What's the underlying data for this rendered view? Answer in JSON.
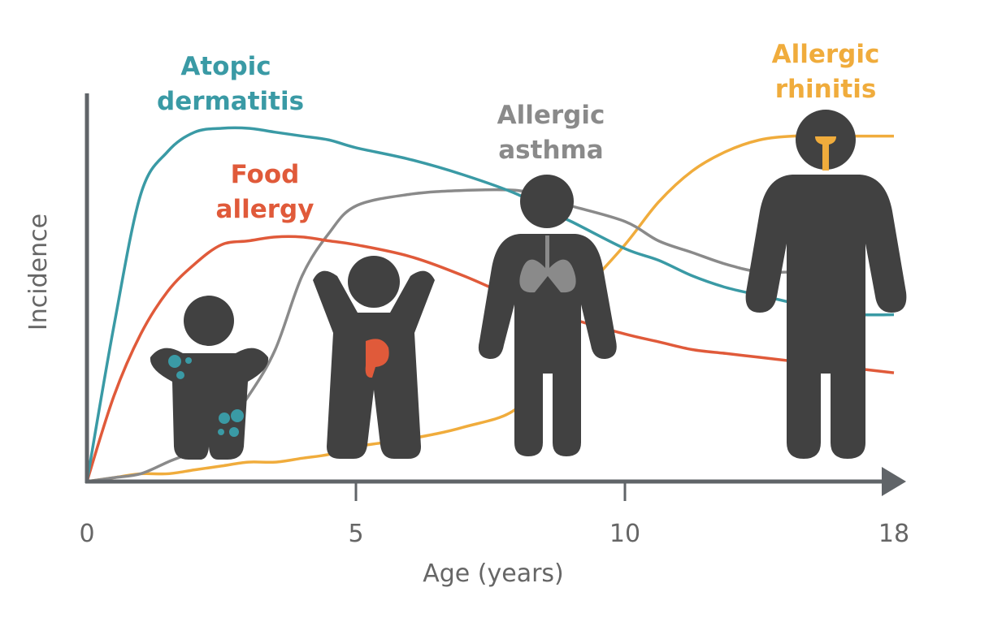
{
  "chart_data": {
    "type": "line",
    "x_label": "Age (years)",
    "y_label": "Incidence",
    "x": [
      0,
      0.5,
      1,
      1.5,
      2,
      2.5,
      3,
      3.5,
      4,
      4.5,
      5,
      6,
      7,
      8,
      8.5,
      9,
      10,
      11,
      12,
      13,
      14,
      15,
      16,
      17,
      18
    ],
    "xlim": [
      0,
      18
    ],
    "xticks": [
      0,
      5,
      10,
      18
    ],
    "ylim": [
      0,
      100
    ],
    "series": [
      {
        "name": "Allergic rhinitis",
        "color": "#f0ac3c",
        "values": [
          0,
          1,
          2,
          2,
          3,
          4,
          5,
          5,
          6,
          7,
          9,
          11,
          14,
          19,
          32,
          45,
          61,
          72,
          80,
          85,
          88,
          89,
          89,
          89,
          89
        ]
      },
      {
        "name": "Allergic asthma",
        "color": "#8a8a8a",
        "values": [
          0,
          1,
          2,
          5,
          8,
          13,
          22,
          34,
          53,
          64,
          71,
          74,
          75,
          75,
          73,
          71,
          67,
          62,
          59,
          56,
          54,
          54,
          null,
          null,
          null
        ]
      },
      {
        "name": "Food allergy",
        "color": "#e05a3a",
        "values": [
          0,
          22,
          38,
          49,
          56,
          61,
          62,
          63,
          63,
          62,
          61,
          58,
          53,
          47,
          45,
          42,
          38,
          36,
          34,
          33,
          32,
          31,
          30,
          29,
          28
        ]
      },
      {
        "name": "Atopic dermatitis",
        "color": "#3a9aa5",
        "values": [
          0,
          40,
          74,
          85,
          90,
          91,
          91,
          90,
          89,
          88,
          86,
          83,
          79,
          74,
          70,
          67,
          60,
          57,
          53,
          50,
          48,
          46,
          44,
          43,
          43
        ]
      }
    ]
  }
}
